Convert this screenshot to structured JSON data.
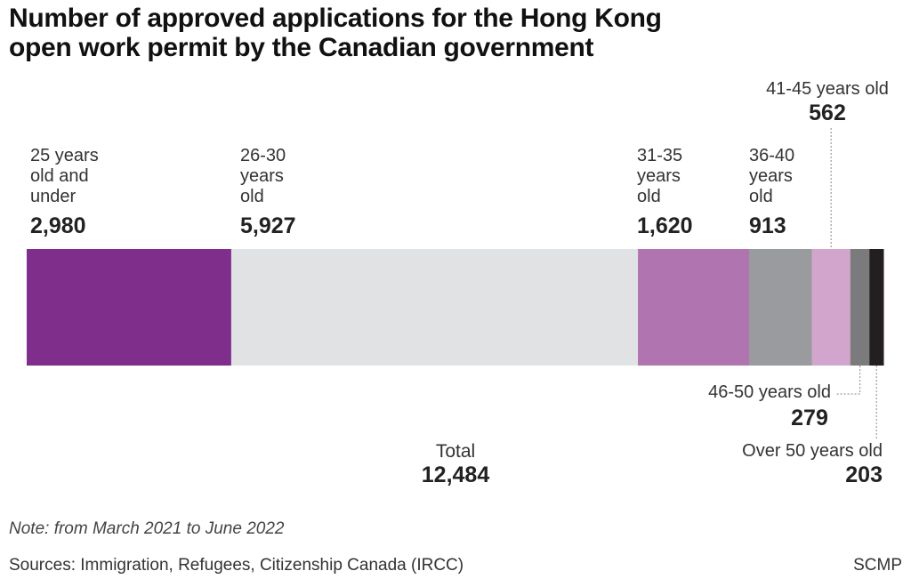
{
  "chart_data": {
    "type": "bar",
    "orientation": "horizontal-stacked",
    "title": "Number of approved applications for the Hong Kong open work permit by the Canadian government",
    "categories": [
      "25 years old and under",
      "26-30 years old",
      "31-35 years old",
      "36-40 years old",
      "41-45 years old",
      "46-50 years old",
      "Over 50 years old"
    ],
    "category_lines": [
      [
        "25 years",
        "old and",
        "under"
      ],
      [
        "26-30",
        "years",
        "old"
      ],
      [
        "31-35",
        "years",
        "old"
      ],
      [
        "36-40",
        "years",
        "old"
      ],
      [
        "41-45 years old"
      ],
      [
        "46-50 years old"
      ],
      [
        "Over 50 years old"
      ]
    ],
    "values": [
      2980,
      5927,
      1620,
      913,
      562,
      279,
      203
    ],
    "value_labels": [
      "2,980",
      "5,927",
      "1,620",
      "913",
      "562",
      "279",
      "203"
    ],
    "colors": [
      "#7f2e8c",
      "#e1e2e4",
      "#b074b0",
      "#9a9b9e",
      "#d1a5cc",
      "#7b7b7d",
      "#231f20"
    ],
    "total_label": "Total",
    "total_value": "12,484",
    "grid": false
  },
  "note": "Note: from March 2021 to June 2022",
  "source": "Sources: Immigration, Refugees, Citizenship Canada (IRCC)",
  "brand": "SCMP"
}
